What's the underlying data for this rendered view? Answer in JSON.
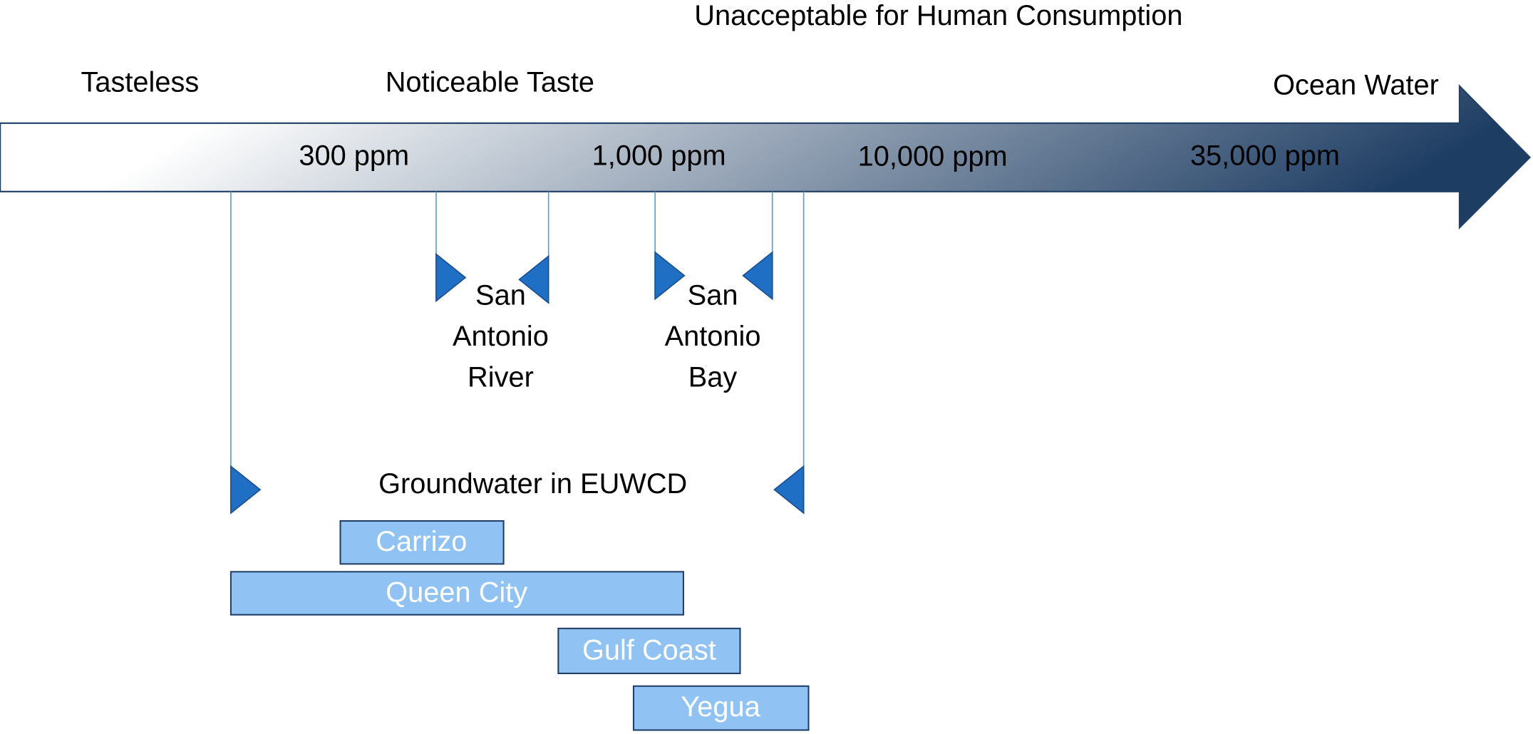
{
  "header": {
    "title": "Unacceptable for Human Consumption",
    "left": "Tasteless",
    "middle": "Noticeable Taste",
    "right": "Ocean Water"
  },
  "scale": [
    "300 ppm",
    "1,000 ppm",
    "10,000 ppm",
    "35,000 ppm"
  ],
  "ranges": [
    {
      "lines": [
        "San",
        "Antonio",
        "River"
      ]
    },
    {
      "lines": [
        "San",
        "Antonio",
        "Bay"
      ]
    },
    {
      "lines": [
        "Groundwater in EUWCD"
      ]
    }
  ],
  "aquifers": [
    "Carrizo",
    "Queen City",
    "Gulf Coast",
    "Yegua"
  ]
}
